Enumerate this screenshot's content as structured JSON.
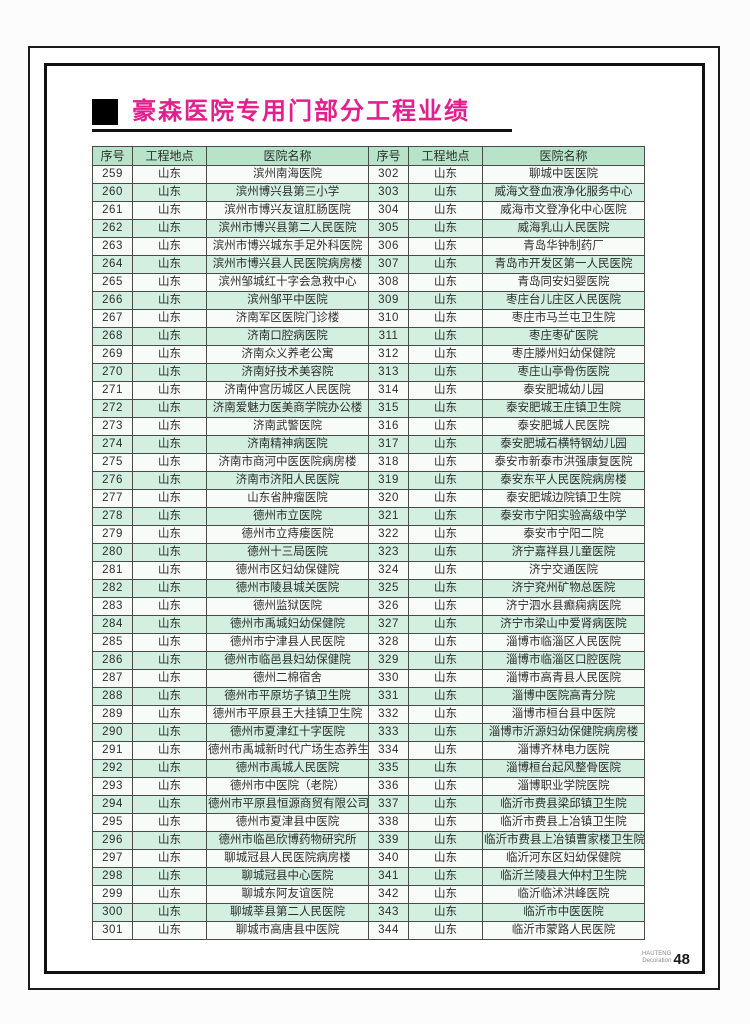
{
  "page": {
    "title": "豪森医院专用门部分工程业绩",
    "footer": {
      "brand_line1": "HAUTENG",
      "brand_line2": "Decoration",
      "page_number": "48"
    }
  },
  "colors": {
    "title": "#e31f8d",
    "header_bg": "#b7e3c9",
    "row_alt_bg": "#d2efdf",
    "row_bg": "#f7fcf8",
    "border": "#4a4a4a"
  },
  "table": {
    "headers": [
      "序号",
      "工程地点",
      "医院名称",
      "序号",
      "工程地点",
      "医院名称"
    ],
    "left_rows": [
      [
        "259",
        "山东",
        "滨州南海医院"
      ],
      [
        "260",
        "山东",
        "滨州博兴县第三小学"
      ],
      [
        "261",
        "山东",
        "滨州市博兴友谊肛肠医院"
      ],
      [
        "262",
        "山东",
        "滨州市博兴县第二人民医院"
      ],
      [
        "263",
        "山东",
        "滨州市博兴城东手足外科医院"
      ],
      [
        "264",
        "山东",
        "滨州市博兴县人民医院病房楼"
      ],
      [
        "265",
        "山东",
        "滨州邹城红十字会急救中心"
      ],
      [
        "266",
        "山东",
        "滨州邹平中医院"
      ],
      [
        "267",
        "山东",
        "济南军区医院门诊楼"
      ],
      [
        "268",
        "山东",
        "济南口腔病医院"
      ],
      [
        "269",
        "山东",
        "济南众义养老公寓"
      ],
      [
        "270",
        "山东",
        "济南好技术美容院"
      ],
      [
        "271",
        "山东",
        "济南仲宫历城区人民医院"
      ],
      [
        "272",
        "山东",
        "济南爱魅力医美商学院办公楼"
      ],
      [
        "273",
        "山东",
        "济南武警医院"
      ],
      [
        "274",
        "山东",
        "济南精神病医院"
      ],
      [
        "275",
        "山东",
        "济南市商河中医医院病房楼"
      ],
      [
        "276",
        "山东",
        "济南市济阳人民医院"
      ],
      [
        "277",
        "山东",
        "山东省肿瘤医院"
      ],
      [
        "278",
        "山东",
        "德州市立医院"
      ],
      [
        "279",
        "山东",
        "德州市立痔瘘医院"
      ],
      [
        "280",
        "山东",
        "德州十三局医院"
      ],
      [
        "281",
        "山东",
        "德州市区妇幼保健院"
      ],
      [
        "282",
        "山东",
        "德州市陵县城关医院"
      ],
      [
        "283",
        "山东",
        "德州监狱医院"
      ],
      [
        "284",
        "山东",
        "德州市禹城妇幼保健院"
      ],
      [
        "285",
        "山东",
        "德州市宁津县人民医院"
      ],
      [
        "286",
        "山东",
        "德州市临邑县妇幼保健院"
      ],
      [
        "287",
        "山东",
        "德州二棉宿舍"
      ],
      [
        "288",
        "山东",
        "德州市平原坊子镇卫生院"
      ],
      [
        "289",
        "山东",
        "德州市平原县王大挂镇卫生院"
      ],
      [
        "290",
        "山东",
        "德州市夏津红十字医院"
      ],
      [
        "291",
        "山东",
        "德州市禹城新时代广场生态养生馆"
      ],
      [
        "292",
        "山东",
        "德州市禹城人民医院"
      ],
      [
        "293",
        "山东",
        "德州市中医院（老院）"
      ],
      [
        "294",
        "山东",
        "德州市平原县恒源商贸有限公司"
      ],
      [
        "295",
        "山东",
        "德州市夏津县中医院"
      ],
      [
        "296",
        "山东",
        "德州市临邑欣博药物研究所"
      ],
      [
        "297",
        "山东",
        "聊城冠县人民医院病房楼"
      ],
      [
        "298",
        "山东",
        "聊城冠县中心医院"
      ],
      [
        "299",
        "山东",
        "聊城东阿友谊医院"
      ],
      [
        "300",
        "山东",
        "聊城莘县第二人民医院"
      ],
      [
        "301",
        "山东",
        "聊城市高唐县中医院"
      ]
    ],
    "right_rows": [
      [
        "302",
        "山东",
        "聊城中医医院"
      ],
      [
        "303",
        "山东",
        "威海文登血液净化服务中心"
      ],
      [
        "304",
        "山东",
        "威海市文登净化中心医院"
      ],
      [
        "305",
        "山东",
        "威海乳山人民医院"
      ],
      [
        "306",
        "山东",
        "青岛华钟制药厂"
      ],
      [
        "307",
        "山东",
        "青岛市开发区第一人民医院"
      ],
      [
        "308",
        "山东",
        "青岛同安妇婴医院"
      ],
      [
        "309",
        "山东",
        "枣庄台儿庄区人民医院"
      ],
      [
        "310",
        "山东",
        "枣庄市马兰屯卫生院"
      ],
      [
        "311",
        "山东",
        "枣庄枣矿医院"
      ],
      [
        "312",
        "山东",
        "枣庄滕州妇幼保健院"
      ],
      [
        "313",
        "山东",
        "枣庄山亭骨伤医院"
      ],
      [
        "314",
        "山东",
        "泰安肥城幼儿园"
      ],
      [
        "315",
        "山东",
        "泰安肥城王庄镇卫生院"
      ],
      [
        "316",
        "山东",
        "泰安肥城人民医院"
      ],
      [
        "317",
        "山东",
        "泰安肥城石横特钢幼儿园"
      ],
      [
        "318",
        "山东",
        "泰安市新泰市洪强康复医院"
      ],
      [
        "319",
        "山东",
        "泰安东平人民医院病房楼"
      ],
      [
        "320",
        "山东",
        "泰安肥城边院镇卫生院"
      ],
      [
        "321",
        "山东",
        "泰安市宁阳实验高级中学"
      ],
      [
        "322",
        "山东",
        "泰安市宁阳二院"
      ],
      [
        "323",
        "山东",
        "济宁嘉祥县儿童医院"
      ],
      [
        "324",
        "山东",
        "济宁交通医院"
      ],
      [
        "325",
        "山东",
        "济宁兖州矿物总医院"
      ],
      [
        "326",
        "山东",
        "济宁泗水县癫痫病医院"
      ],
      [
        "327",
        "山东",
        "济宁市梁山中爱肾病医院"
      ],
      [
        "328",
        "山东",
        "淄博市临淄区人民医院"
      ],
      [
        "329",
        "山东",
        "淄博市临淄区口腔医院"
      ],
      [
        "330",
        "山东",
        "淄博市高青县人民医院"
      ],
      [
        "331",
        "山东",
        "淄博中医院高青分院"
      ],
      [
        "332",
        "山东",
        "淄博市桓台县中医院"
      ],
      [
        "333",
        "山东",
        "淄博市沂源妇幼保健院病房楼"
      ],
      [
        "334",
        "山东",
        "淄博齐林电力医院"
      ],
      [
        "335",
        "山东",
        "淄博桓台起风整骨医院"
      ],
      [
        "336",
        "山东",
        "淄博职业学院医院"
      ],
      [
        "337",
        "山东",
        "临沂市费县梁邱镇卫生院"
      ],
      [
        "338",
        "山东",
        "临沂市费县上冶镇卫生院"
      ],
      [
        "339",
        "山东",
        "临沂市费县上冶镇曹家楼卫生院"
      ],
      [
        "340",
        "山东",
        "临沂河东区妇幼保健院"
      ],
      [
        "341",
        "山东",
        "临沂兰陵县大仲村卫生院"
      ],
      [
        "342",
        "山东",
        "临沂临沭洪峰医院"
      ],
      [
        "343",
        "山东",
        "临沂市中医医院"
      ],
      [
        "344",
        "山东",
        "临沂市蒙路人民医院"
      ]
    ]
  }
}
